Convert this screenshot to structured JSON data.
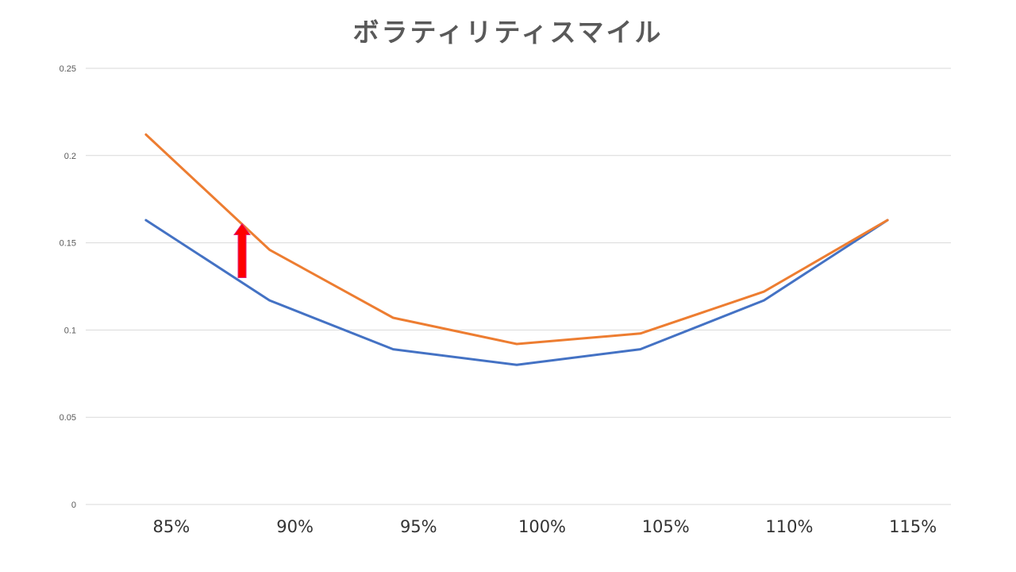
{
  "chart_data": {
    "type": "line",
    "title": "ボラティリティスマイル",
    "xlabel": "",
    "ylabel": "",
    "categories": [
      "85%",
      "90%",
      "95%",
      "100%",
      "105%",
      "110%",
      "115%"
    ],
    "series": [
      {
        "name": "series-blue",
        "color": "#4472C4",
        "values": [
          0.163,
          0.117,
          0.089,
          0.08,
          0.089,
          0.117,
          0.163
        ]
      },
      {
        "name": "series-orange",
        "color": "#ED7D31",
        "values": [
          0.212,
          0.146,
          0.107,
          0.092,
          0.098,
          0.122,
          0.163
        ]
      }
    ],
    "ylim": [
      0,
      0.25
    ],
    "yticks": [
      "0",
      "0.05",
      "0.1",
      "0.15",
      "0.2",
      "0.25"
    ],
    "grid": true,
    "legend": "none",
    "annotations": [
      {
        "type": "arrow",
        "direction": "up",
        "color": "#FF0000",
        "at_category": "between 85% and 90%",
        "from": 0.13,
        "to": 0.161
      }
    ]
  }
}
